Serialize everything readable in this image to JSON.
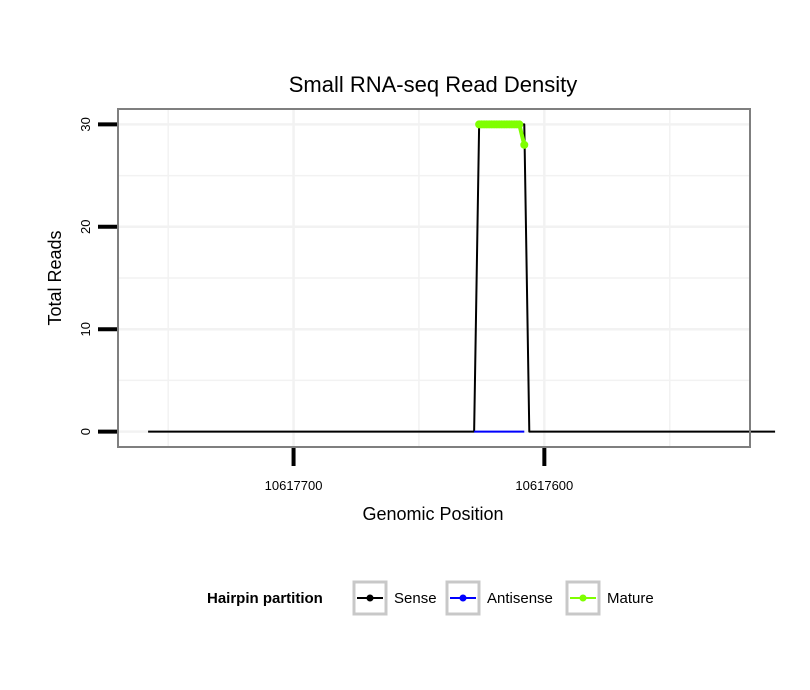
{
  "chart_data": {
    "type": "line",
    "title": "Small RNA-seq Read Density",
    "xlabel": "Genomic Position",
    "ylabel": "Total Reads",
    "xlim": [
      10617770,
      10617518
    ],
    "ylim": [
      -1.5,
      31.5
    ],
    "x_reversed": true,
    "x_ticks": [
      10617700,
      10617600
    ],
    "x_tick_labels": [
      "10617700",
      "10617600"
    ],
    "y_ticks": [
      0,
      10,
      20,
      30
    ],
    "y_tick_labels": [
      "0",
      "10",
      "20",
      "30"
    ],
    "grid": true,
    "legend": {
      "title": "Hairpin partition",
      "position": "bottom",
      "entries": [
        {
          "name": "Sense",
          "color": "#000000"
        },
        {
          "name": "Antisense",
          "color": "#0000ff"
        },
        {
          "name": "Mature",
          "color": "#7fff00"
        }
      ]
    },
    "series": [
      {
        "name": "Sense",
        "color": "#000000",
        "points": [
          [
            10617758,
            0
          ],
          [
            10617628,
            0
          ],
          [
            10617626,
            30
          ],
          [
            10617610,
            30
          ],
          [
            10617608,
            30
          ],
          [
            10617606,
            0
          ],
          [
            10617508,
            0
          ]
        ]
      },
      {
        "name": "Antisense",
        "color": "#0000ff",
        "points": [
          [
            10617628,
            0
          ],
          [
            10617608,
            0
          ]
        ]
      },
      {
        "name": "Mature",
        "color": "#7fff00",
        "points": [
          [
            10617626,
            30
          ],
          [
            10617625,
            30
          ],
          [
            10617624,
            30
          ],
          [
            10617623,
            30
          ],
          [
            10617622,
            30
          ],
          [
            10617621,
            30
          ],
          [
            10617620,
            30
          ],
          [
            10617619,
            30
          ],
          [
            10617618,
            30
          ],
          [
            10617617,
            30
          ],
          [
            10617616,
            30
          ],
          [
            10617615,
            30
          ],
          [
            10617614,
            30
          ],
          [
            10617613,
            30
          ],
          [
            10617612,
            30
          ],
          [
            10617611,
            30
          ],
          [
            10617610,
            30
          ],
          [
            10617608,
            28
          ]
        ]
      }
    ]
  }
}
